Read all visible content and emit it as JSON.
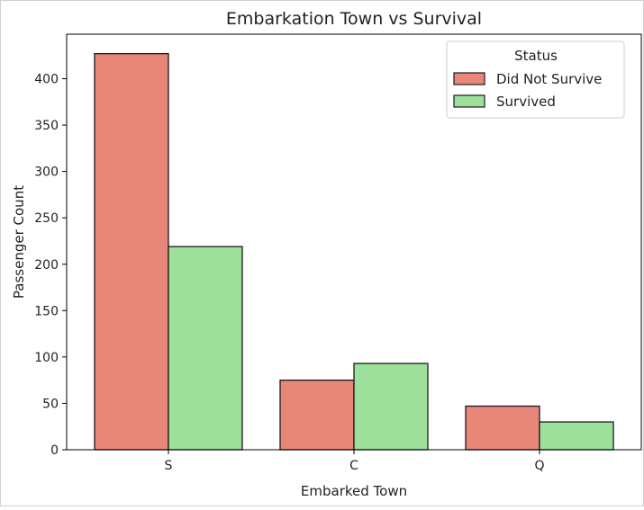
{
  "chart_data": {
    "type": "bar",
    "title": "Embarkation Town vs Survival",
    "xlabel": "Embarked Town",
    "ylabel": "Passenger Count",
    "categories": [
      "S",
      "C",
      "Q"
    ],
    "series": [
      {
        "name": "Did Not Survive",
        "values": [
          427,
          75,
          47
        ],
        "color": "#e8867a"
      },
      {
        "name": "Survived",
        "values": [
          219,
          93,
          30
        ],
        "color": "#9de09b"
      }
    ],
    "ylim": [
      0,
      448
    ],
    "yticks": [
      "0",
      "50",
      "100",
      "150",
      "200",
      "250",
      "300",
      "350",
      "400"
    ],
    "legend": {
      "title": "Status",
      "placement": "top-right"
    },
    "grid": false
  }
}
